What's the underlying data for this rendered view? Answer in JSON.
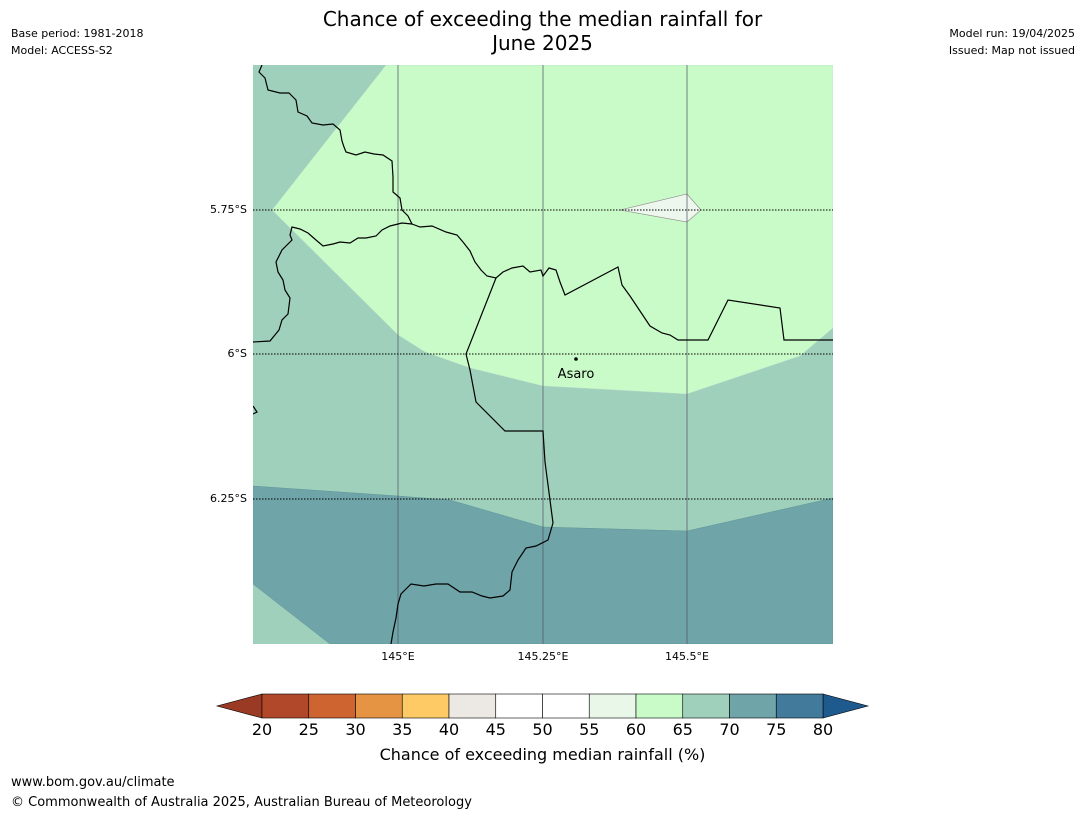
{
  "header": {
    "left": {
      "base_period": "Base period: 1981-2018",
      "model": "Model: ACCESS-S2"
    },
    "right": {
      "model_run": "Model run: 19/04/2025",
      "issued": "Issued: Map not issued"
    },
    "title_line1": "Chance of exceeding the median rainfall for",
    "title_line2": "June 2025"
  },
  "map": {
    "lat_labels": [
      "5.75°S",
      "6°S",
      "6.25°S"
    ],
    "lon_labels": [
      "145°E",
      "145.25°E",
      "145.5°E"
    ],
    "place": {
      "name": "Asaro"
    },
    "regions": [
      {
        "name": "65-70 band (north-west)",
        "color": "#9fd0bb"
      },
      {
        "name": "60-65 band (central)",
        "color": "#c9fbc9"
      },
      {
        "name": "55-60 patch",
        "color": "#edf7ed"
      },
      {
        "name": "65-70 band (south)",
        "color": "#9fd0bb"
      },
      {
        "name": "70-75 band",
        "color": "#6fa4a8"
      }
    ]
  },
  "colorbar": {
    "ticks": [
      "20",
      "25",
      "30",
      "35",
      "40",
      "45",
      "50",
      "55",
      "60",
      "65",
      "70",
      "75",
      "80"
    ],
    "colors": [
      "#b1482a",
      "#ce6531",
      "#e49443",
      "#fdca66",
      "#ece9e5",
      "#ffffff",
      "#ffffff",
      "#e9f7e9",
      "#c9fbc9",
      "#9fd0bb",
      "#6fa4a8",
      "#427a9b"
    ],
    "under_color": "#9a3a24",
    "over_color": "#1f5a8f",
    "label": "Chance of exceeding median rainfall (%)"
  },
  "footer": {
    "url": "www.bom.gov.au/climate",
    "copyright": "© Commonwealth of Australia 2025, Australian Bureau of Meteorology"
  }
}
